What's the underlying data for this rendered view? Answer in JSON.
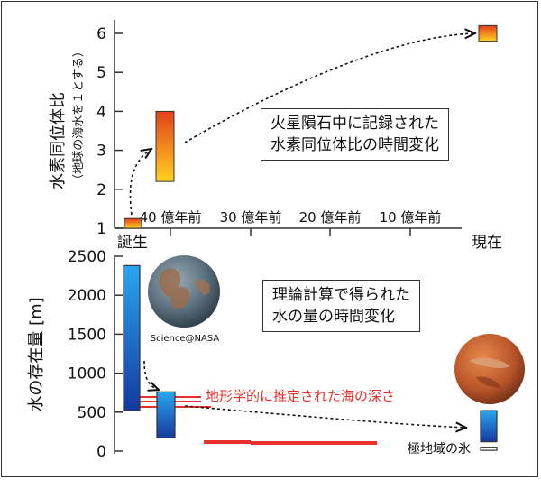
{
  "top_chart": {
    "ylabel_main": "水素同位体比",
    "ylabel_sub": "（地球の海水を１とする）",
    "yticks": [
      "1",
      "2",
      "3",
      "4",
      "5",
      "6"
    ],
    "annotation_line1": "火星隕石中に記録された",
    "annotation_line2": "水素同位体比の時間変化"
  },
  "time_axis": {
    "start_label": "誕生",
    "end_label": "現在",
    "ticks": [
      "40 億年前",
      "30 億年前",
      "20 億年前",
      "10 億年前"
    ]
  },
  "bottom_chart": {
    "ylabel": "水の存在量 [m]",
    "yticks": [
      "0",
      "500",
      "1000",
      "1500",
      "2000",
      "2500"
    ],
    "annotation_line1": "理論計算で得られた",
    "annotation_line2": "水の量の時間変化",
    "red_label": "地形学的に推定された海の深さ",
    "polar_label": "極地域の氷",
    "image_credit": "Science@NASA"
  },
  "chart_data": [
    {
      "type": "bar",
      "title": "火星隕石中に記録された水素同位体比の時間変化",
      "ylabel": "水素同位体比（地球の海水を１とする）",
      "ylim": [
        1,
        6.3
      ],
      "x_categories": [
        "誕生",
        "40 億年前",
        "現在"
      ],
      "ranges": [
        {
          "time": "誕生",
          "low": 1.0,
          "high": 1.25
        },
        {
          "time": "40 億年前",
          "low": 2.2,
          "high": 4.0
        },
        {
          "time": "現在",
          "low": 5.8,
          "high": 6.2
        }
      ],
      "colors": {
        "low": "#ffd21f",
        "high": "#e3401c"
      }
    },
    {
      "type": "bar",
      "title": "理論計算で得られた水の量の時間変化",
      "ylabel": "水の存在量 [m]",
      "ylim": [
        0,
        2500
      ],
      "ranges": [
        {
          "time": "誕生",
          "low": 520,
          "high": 2380
        },
        {
          "time": "40 億年前",
          "low": 170,
          "high": 760
        },
        {
          "time": "現在",
          "low": 10,
          "high": 50,
          "kind": "極地域の氷"
        },
        {
          "time": "現在",
          "low": 120,
          "high": 520
        }
      ],
      "colors": {
        "top": "#2aa6ef",
        "bottom": "#143a9e"
      },
      "ocean_depth_estimates": [
        {
          "label": "地形学的に推定された海の深さ",
          "values": [
            700,
            650,
            590,
            150,
            130
          ]
        }
      ]
    }
  ]
}
